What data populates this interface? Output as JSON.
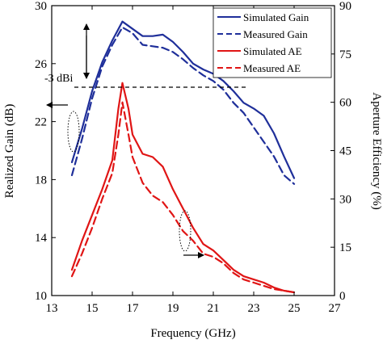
{
  "chart_data": {
    "type": "line",
    "xlabel": "Frequency (GHz)",
    "ylabel_left": "Realized Gain (dB)",
    "ylabel_right": "Aperture Efficiency (%)",
    "xlim": [
      13,
      27
    ],
    "ylim_left": [
      10,
      30
    ],
    "ylim_right": [
      0,
      90
    ],
    "x_ticks": [
      "13",
      "15",
      "17",
      "19",
      "21",
      "23",
      "25",
      "27"
    ],
    "y_ticks_left": [
      "10",
      "14",
      "18",
      "22",
      "26",
      "30"
    ],
    "y_ticks_right": [
      "0",
      "15",
      "30",
      "45",
      "60",
      "75",
      "90"
    ],
    "grid": false,
    "legend_position": "top-right",
    "annotation": "-3 dBi",
    "series": [
      {
        "name": "Simulated Gain",
        "axis": "left",
        "color": "#1f2f9a",
        "dash": "solid",
        "x": [
          14.0,
          14.5,
          15.0,
          15.5,
          16.0,
          16.5,
          17.0,
          17.5,
          18.0,
          18.5,
          19.0,
          19.5,
          20.0,
          20.5,
          21.0,
          21.5,
          22.0,
          22.5,
          23.0,
          23.5,
          24.0,
          24.5,
          25.0
        ],
        "y": [
          19.2,
          21.5,
          24.1,
          26.1,
          27.6,
          28.9,
          28.4,
          27.9,
          27.9,
          28.0,
          27.5,
          26.8,
          26.0,
          25.6,
          25.3,
          24.8,
          24.1,
          23.3,
          22.9,
          22.4,
          21.2,
          19.6,
          18.1
        ]
      },
      {
        "name": "Measured Gain",
        "axis": "left",
        "color": "#1f2f9a",
        "dash": "dashed",
        "x": [
          14.0,
          14.5,
          15.0,
          15.5,
          16.0,
          16.5,
          17.0,
          17.5,
          18.0,
          18.5,
          19.0,
          19.5,
          20.0,
          20.5,
          21.0,
          21.5,
          22.0,
          22.5,
          23.0,
          23.5,
          24.0,
          24.5,
          25.0
        ],
        "y": [
          18.3,
          20.8,
          23.6,
          25.8,
          27.3,
          28.5,
          28.1,
          27.3,
          27.2,
          27.1,
          26.8,
          26.3,
          25.7,
          25.2,
          24.8,
          24.2,
          23.3,
          22.6,
          21.6,
          20.6,
          19.6,
          18.3,
          17.7
        ]
      },
      {
        "name": "Simulated AE",
        "axis": "right",
        "color": "#e01515",
        "dash": "solid",
        "x": [
          14.0,
          14.5,
          15.0,
          15.5,
          16.0,
          16.3,
          16.5,
          16.8,
          17.0,
          17.5,
          18.0,
          18.5,
          19.0,
          19.5,
          20.0,
          20.5,
          21.0,
          21.5,
          22.0,
          22.5,
          23.0,
          23.5,
          24.0,
          24.5,
          25.0
        ],
        "y": [
          8.0,
          17.0,
          25.0,
          33.0,
          42.0,
          58.0,
          66.0,
          58.0,
          50.0,
          44.0,
          43.0,
          40.0,
          33.0,
          27.0,
          21.0,
          16.0,
          14.0,
          11.0,
          8.0,
          6.0,
          5.0,
          4.0,
          2.5,
          1.5,
          1.0
        ]
      },
      {
        "name": "Measured AE",
        "axis": "right",
        "color": "#e01515",
        "dash": "dashed",
        "x": [
          14.0,
          14.5,
          15.0,
          15.5,
          16.0,
          16.3,
          16.5,
          16.8,
          17.0,
          17.5,
          18.0,
          18.5,
          19.0,
          19.5,
          20.0,
          20.5,
          21.0,
          21.5,
          22.0,
          22.5,
          23.0,
          23.5,
          24.0,
          24.5,
          25.0
        ],
        "y": [
          6.0,
          13.0,
          21.0,
          30.0,
          38.0,
          50.0,
          60.0,
          50.0,
          43.0,
          35.0,
          31.0,
          29.0,
          25.0,
          20.0,
          17.0,
          13.0,
          12.0,
          10.0,
          7.0,
          5.0,
          4.0,
          3.0,
          2.0,
          1.5,
          1.0
        ]
      }
    ]
  }
}
